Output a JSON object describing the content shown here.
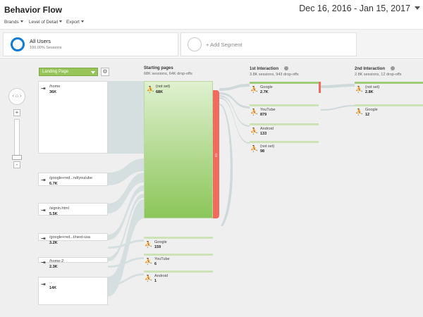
{
  "header": {
    "title": "Behavior Flow",
    "date_range": "Dec 16, 2016 - Jan 15, 2017"
  },
  "menus": [
    {
      "label": "Brands"
    },
    {
      "label": "Level of Detail"
    },
    {
      "label": "Export"
    }
  ],
  "segments": {
    "active": {
      "name": "All Users",
      "sessions": "100.00% Sessions"
    },
    "add_label": "+ Add Segment"
  },
  "controls": {
    "dimension_select": "Landing Page"
  },
  "columns": {
    "starting": {
      "title": "Starting pages",
      "stats": "68K sessions, 64K drop-offs"
    },
    "first": {
      "title": "1st Interaction",
      "stats": "3.8K sessions, 943 drop-offs"
    },
    "second": {
      "title": "2nd Interaction",
      "stats": "2.8K sessions, 12 drop-offs"
    }
  },
  "landing_pages": [
    {
      "name": "/home",
      "value": "36K"
    },
    {
      "name": "/google+red...nd/youtube",
      "value": "6.7K"
    },
    {
      "name": "/signin.html",
      "value": "5.5K"
    },
    {
      "name": "/google+red...t/nest-usa",
      "value": "3.2K"
    },
    {
      "name": "/home-2",
      "value": "2.3K"
    },
    {
      "name": "...",
      "value": "14K"
    }
  ],
  "starting_pages": [
    {
      "name": "(not set)",
      "value": "68K"
    },
    {
      "name": "Google",
      "value": "159"
    },
    {
      "name": "YouTube",
      "value": "6"
    },
    {
      "name": "Android",
      "value": "1"
    }
  ],
  "first_interaction": [
    {
      "name": "Google",
      "value": "2.7K"
    },
    {
      "name": "YouTube",
      "value": "879"
    },
    {
      "name": "Android",
      "value": "133"
    },
    {
      "name": "(not set)",
      "value": "98"
    }
  ],
  "second_interaction": [
    {
      "name": "(not set)",
      "value": "2.8K"
    },
    {
      "name": "Google",
      "value": "12"
    }
  ],
  "colors": {
    "accent": "#0b7bd3",
    "node_green": "#8cc65a",
    "dropoff_red": "#ef6b5e",
    "flow_gray": "#d5dcdd"
  }
}
